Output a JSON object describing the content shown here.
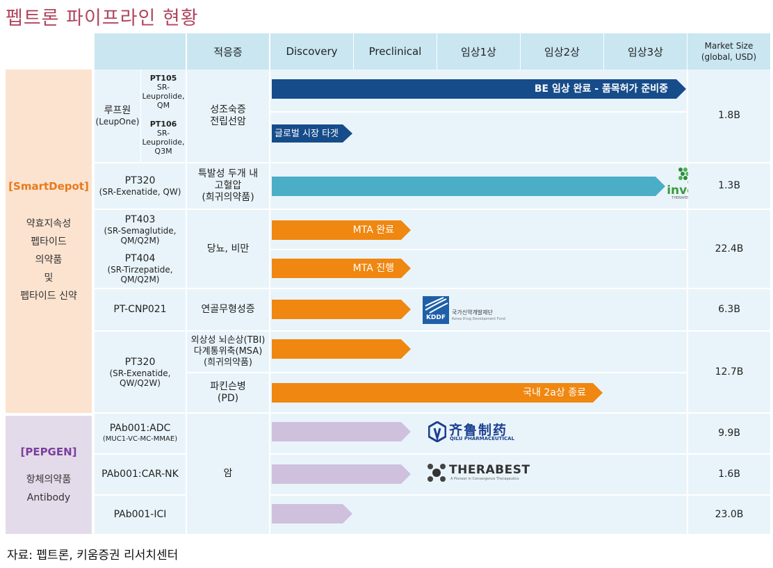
{
  "title": "펩트론 파이프라인 현황",
  "source": "자료: 펩트론, 키움증권 리서치센터",
  "header": {
    "indication": "적응증",
    "stages": [
      "Discovery",
      "Preclinical",
      "임상1상",
      "임상2상",
      "임상3상"
    ],
    "market_line1": "Market Size",
    "market_line2": "(global, USD)"
  },
  "groups": {
    "smartdepot": {
      "name": "[SmartDepot]",
      "desc": [
        "약효지속성",
        "펩타이드",
        "의약품",
        "및",
        "펩타이드 신약"
      ],
      "color": "#fbe3d0",
      "name_color": "#e8791a"
    },
    "pepgen": {
      "name": "[PEPGEN]",
      "desc": [
        "항체의약품",
        "Antibody"
      ],
      "color": "#e4dbea",
      "name_color": "#7a3f9e"
    }
  },
  "products": {
    "luphowon": {
      "name": "루프원",
      "sub": "(LeupOne)"
    },
    "pt105": {
      "code": "PT105",
      "desc": [
        "SR-",
        "Leuprolide,",
        "QM"
      ]
    },
    "pt106": {
      "code": "PT106",
      "desc": [
        "SR-",
        "Leuprolide,",
        "Q3M"
      ]
    },
    "pt320a": {
      "name": "PT320",
      "sub": "(SR-Exenatide, QW)"
    },
    "pt403": {
      "name": "PT403",
      "sub1": "(SR-Semaglutide,",
      "sub2": "QM/Q2M)"
    },
    "pt404": {
      "name": "PT404",
      "sub1": "(SR-Tirzepatide,",
      "sub2": "QM/Q2M)"
    },
    "ptcnp": {
      "name": "PT-CNP021"
    },
    "pt320b": {
      "name": "PT320",
      "sub1": "(SR-Exenatide,",
      "sub2": "QW/Q2W)"
    },
    "adc": {
      "name": "PAb001:ADC",
      "sub": "(MUC1-VC-MC-MMAE)"
    },
    "carnk": {
      "name": "PAb001:CAR-NK"
    },
    "ici": {
      "name": "PAb001-ICI"
    }
  },
  "indications": {
    "prostate": [
      "성조숙증",
      "전립선암"
    ],
    "hypertension": [
      "특발성 두개 내",
      "고혈압",
      "(희귀의약품)"
    ],
    "diabetes": [
      "당뇨, 비만"
    ],
    "achondroplasia": [
      "연골무형성증"
    ],
    "tbi": [
      "외상성 뇌손상(TBI)",
      "다계통위축(MSA)",
      "(희귀의약품)"
    ],
    "parkinson": [
      "파킨슨병",
      "(PD)"
    ],
    "cancer": [
      "암"
    ]
  },
  "arrows": {
    "luphowon_be": {
      "label": "BE 임상 완료 -  품목허가 준비중",
      "color": "#174c8a",
      "progress_stage": 5.0
    },
    "luphowon_global": {
      "label": "글로벌 시장 타겟",
      "color": "#174c8a",
      "progress_stage": 1.0
    },
    "pt320a": {
      "label": "",
      "color": "#4aaec6",
      "progress_stage": 4.75
    },
    "pt403": {
      "label": "MTA 완료",
      "color": "#ef8710",
      "progress_stage": 1.7
    },
    "pt404": {
      "label": "MTA 진행",
      "color": "#ef8710",
      "progress_stage": 1.7
    },
    "ptcnp": {
      "label": "",
      "color": "#ef8710",
      "progress_stage": 1.7
    },
    "tbi": {
      "label": "",
      "color": "#ef8710",
      "progress_stage": 1.7
    },
    "parkinson": {
      "label": "국내 2a상 종료",
      "color": "#ef8710",
      "progress_stage": 4.0
    },
    "adc": {
      "label": "",
      "color": "#cfc1de",
      "progress_stage": 1.7
    },
    "carnk": {
      "label": "",
      "color": "#cfc1de",
      "progress_stage": 1.7
    },
    "ici": {
      "label": "",
      "color": "#cfc1de",
      "progress_stage": 1.0
    }
  },
  "partners": {
    "invex": {
      "name": "invex",
      "sub": "THERAPEUTICS",
      "color": "#3a9a3a"
    },
    "kddf": {
      "name": "KDDF",
      "line1": "국가신약개발재단",
      "line2": "Korea Drug Development Fund",
      "color": "#1e5fa8"
    },
    "qilu": {
      "name": "齐鲁制药",
      "sub": "QILU PHARMACEUTICAL",
      "color": "#1b3f8f"
    },
    "therabest": {
      "name": "THERABEST",
      "sub": "A Pioneer in Convergence Therapeutics",
      "color": "#333333"
    }
  },
  "market": {
    "prostate": "1.8B",
    "hypertension": "1.3B",
    "diabetes": "22.4B",
    "achondroplasia": "6.3B",
    "neuro": "12.7B",
    "adc": "9.9B",
    "carnk": "1.6B",
    "ici": "23.0B"
  }
}
